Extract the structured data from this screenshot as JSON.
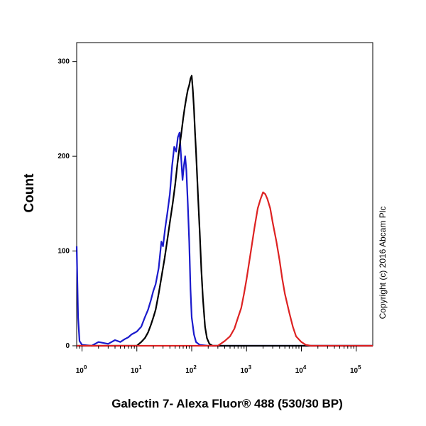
{
  "chart_data": {
    "type": "line",
    "xlabel": "Galectin 7- Alexa Fluor® 488 (530/30 BP)",
    "ylabel": "Count",
    "x_scale": "log",
    "xlim": [
      0.8,
      200000
    ],
    "ylim": [
      0,
      320
    ],
    "x_ticks": [
      {
        "base": "10",
        "exp": "0",
        "value": 1
      },
      {
        "base": "10",
        "exp": "1",
        "value": 10
      },
      {
        "base": "10",
        "exp": "2",
        "value": 100
      },
      {
        "base": "10",
        "exp": "3",
        "value": 1000
      },
      {
        "base": "10",
        "exp": "4",
        "value": 10000
      },
      {
        "base": "10",
        "exp": "5",
        "value": 100000
      }
    ],
    "y_ticks": [
      {
        "label": "0",
        "value": 0
      },
      {
        "label": "100",
        "value": 100
      },
      {
        "label": "200",
        "value": 200
      },
      {
        "label": "300",
        "value": 300
      }
    ],
    "grid": false,
    "annotation": "Copyright (c) 2016 Abcam Plc",
    "series": [
      {
        "color": "#1a1acc",
        "x": [
          0.8,
          0.85,
          0.9,
          1.0,
          1.5,
          2,
          3,
          4,
          5,
          6,
          7,
          8,
          10,
          12,
          14,
          16,
          18,
          20,
          22,
          25,
          28,
          30,
          33,
          36,
          40,
          44,
          48,
          52,
          56,
          60,
          64,
          68,
          72,
          76,
          80,
          85,
          90,
          95,
          100,
          110,
          120,
          140,
          200,
          1000,
          10000,
          200000
        ],
        "y": [
          105,
          30,
          5,
          1,
          0,
          4,
          2,
          6,
          4,
          7,
          9,
          12,
          15,
          20,
          30,
          38,
          48,
          58,
          65,
          82,
          110,
          105,
          125,
          140,
          160,
          190,
          210,
          205,
          220,
          225,
          200,
          175,
          190,
          200,
          185,
          150,
          110,
          60,
          30,
          12,
          4,
          1,
          0,
          0,
          0,
          0
        ]
      },
      {
        "color": "#000000",
        "x": [
          0.8,
          10,
          12,
          14,
          16,
          18,
          20,
          22,
          25,
          28,
          32,
          36,
          40,
          45,
          50,
          55,
          60,
          65,
          70,
          75,
          80,
          85,
          90,
          95,
          100,
          105,
          110,
          115,
          120,
          130,
          140,
          150,
          160,
          175,
          190,
          210,
          240,
          280,
          350,
          1000,
          10000,
          200000
        ],
        "y": [
          0,
          0,
          4,
          8,
          14,
          22,
          30,
          38,
          55,
          72,
          92,
          112,
          130,
          150,
          170,
          192,
          210,
          225,
          240,
          252,
          262,
          270,
          275,
          282,
          285,
          270,
          250,
          225,
          205,
          160,
          120,
          80,
          50,
          20,
          8,
          2,
          0,
          0,
          0,
          0,
          0,
          0
        ]
      },
      {
        "color": "#dd2222",
        "x": [
          0.8,
          300,
          400,
          500,
          600,
          700,
          800,
          900,
          1000,
          1200,
          1400,
          1600,
          1800,
          2000,
          2200,
          2400,
          2700,
          3000,
          3500,
          4000,
          4500,
          5000,
          6000,
          7000,
          8000,
          10000,
          12000,
          15000,
          20000,
          200000
        ],
        "y": [
          0,
          0,
          5,
          10,
          18,
          30,
          40,
          55,
          70,
          100,
          125,
          145,
          155,
          162,
          160,
          155,
          145,
          130,
          110,
          90,
          70,
          55,
          35,
          20,
          10,
          4,
          1,
          0,
          0,
          0
        ]
      }
    ]
  }
}
